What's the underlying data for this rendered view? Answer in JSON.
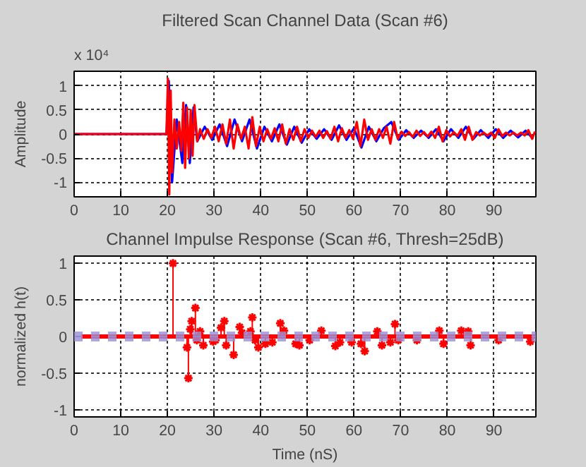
{
  "chart_data": [
    {
      "type": "line",
      "title": "Filtered Scan Channel Data (Scan #6)",
      "ylabel": "Amplitude",
      "annotations": [
        "x 10⁴"
      ],
      "xlim": [
        0,
        99
      ],
      "ylim": [
        -1.3,
        1.3
      ],
      "xticks": [
        0,
        10,
        20,
        30,
        40,
        50,
        60,
        70,
        80,
        90
      ],
      "yticks": [
        -1,
        -0.5,
        0,
        0.5,
        1
      ],
      "grid": true,
      "series": [
        {
          "color": "#0000ff",
          "x": [
            0,
            19.8,
            20.3,
            21.0,
            22.0,
            23.2,
            24.0,
            24.8,
            25.6,
            26.4,
            28.0,
            29.6,
            31.2,
            32.8,
            34.4,
            36.0,
            37.6,
            39.2,
            40.8,
            42.4,
            44.0,
            45.6,
            47.2,
            48.8,
            50.4,
            52.0,
            53.6,
            55.2,
            56.8,
            58.4,
            60.0,
            61.6,
            63.2,
            64.8,
            66.4,
            68.0,
            69.6,
            71.2,
            72.8,
            74.4,
            76.0,
            77.6,
            79.2,
            80.8,
            82.4,
            84.0,
            85.6,
            87.2,
            88.8,
            90.4,
            92.0,
            93.6,
            95.2,
            96.8,
            98.4
          ],
          "values": [
            0,
            0,
            1.1,
            -1.0,
            0.3,
            -0.6,
            0.6,
            -0.6,
            0.55,
            -0.15,
            0.15,
            -0.12,
            0.2,
            -0.25,
            0.3,
            -0.15,
            0.3,
            -0.3,
            0.15,
            -0.15,
            0.2,
            -0.22,
            0.15,
            -0.18,
            0.1,
            -0.1,
            0.1,
            -0.12,
            0.18,
            -0.12,
            0.12,
            -0.28,
            0.15,
            -0.15,
            0.12,
            0.25,
            -0.12,
            0.08,
            -0.08,
            0.07,
            -0.08,
            0.1,
            -0.15,
            0.1,
            -0.08,
            0.15,
            -0.1,
            0.08,
            -0.08,
            0.1,
            -0.08,
            0.07,
            -0.07,
            0.07,
            -0.1
          ]
        },
        {
          "color": "#ff0000",
          "x": [
            0,
            19.8,
            20.1,
            20.4,
            20.7,
            21.0,
            21.5,
            22.0,
            22.5,
            23.0,
            23.4,
            23.8,
            24.2,
            24.6,
            25.0,
            25.4,
            25.8,
            26.4,
            27.0,
            27.8,
            28.6,
            29.4,
            30.2,
            31.0,
            31.8,
            32.6,
            33.4,
            34.2,
            35.0,
            35.8,
            36.6,
            37.4,
            38.2,
            39.0,
            39.8,
            40.6,
            41.4,
            42.2,
            43.0,
            43.8,
            44.6,
            45.4,
            46.2,
            47.0,
            47.8,
            48.6,
            49.4,
            50.2,
            51.0,
            51.8,
            52.6,
            53.4,
            54.2,
            55.0,
            55.8,
            56.6,
            57.4,
            58.2,
            59.0,
            59.8,
            60.6,
            61.4,
            62.2,
            63.0,
            63.8,
            64.6,
            65.4,
            66.2,
            67.0,
            67.8,
            68.6,
            69.4,
            70.2,
            71.0,
            71.8,
            72.6,
            73.4,
            74.2,
            75.0,
            75.8,
            76.6,
            77.4,
            78.2,
            79.0,
            79.8,
            80.6,
            81.4,
            82.2,
            83.0,
            83.8,
            84.6,
            85.4,
            86.2,
            87.0,
            87.8,
            88.6,
            89.4,
            90.2,
            91.0,
            91.8,
            92.6,
            93.4,
            94.2,
            95.0,
            95.8,
            96.6,
            97.4,
            98.2,
            98.8
          ],
          "values": [
            0,
            0,
            1.15,
            -1.25,
            0.9,
            -0.8,
            0.3,
            -0.3,
            0.25,
            -0.35,
            0.65,
            -0.7,
            0.55,
            -0.5,
            0.5,
            -0.45,
            0.6,
            -0.15,
            0.1,
            -0.1,
            0.1,
            -0.08,
            0.15,
            -0.15,
            0.2,
            -0.2,
            0.3,
            -0.3,
            0.2,
            -0.1,
            0.15,
            -0.3,
            0.35,
            -0.25,
            0.15,
            -0.15,
            0.1,
            -0.1,
            0.12,
            -0.15,
            0.2,
            -0.2,
            0.1,
            -0.12,
            0.15,
            -0.15,
            0.1,
            -0.08,
            0.07,
            -0.06,
            0.07,
            -0.08,
            0.06,
            -0.1,
            0.15,
            -0.15,
            0.12,
            -0.08,
            0.08,
            -0.1,
            0.25,
            -0.25,
            0.3,
            -0.12,
            0.1,
            -0.12,
            0.1,
            -0.08,
            0.15,
            -0.2,
            0.25,
            -0.1,
            0.05,
            -0.04,
            0.04,
            -0.06,
            0.07,
            -0.04,
            0.04,
            -0.05,
            0.05,
            -0.08,
            0.15,
            -0.15,
            0.08,
            -0.05,
            0.04,
            -0.04,
            0.1,
            -0.12,
            0.15,
            -0.12,
            0.04,
            -0.03,
            0.03,
            -0.03,
            0.03,
            -0.08,
            0.1,
            -0.04,
            0.03,
            -0.03,
            0.03,
            -0.03,
            0.03,
            -0.03,
            0.08,
            -0.1,
            0.05
          ]
        }
      ]
    },
    {
      "type": "lollipop",
      "title": "Channel Impulse Response (Scan #6, Thresh=25dB)",
      "xlabel": "Time (nS)",
      "ylabel": "normalized h(t)",
      "xlim": [
        0,
        99
      ],
      "ylim": [
        -1.1,
        1.1
      ],
      "xticks": [
        0,
        10,
        20,
        30,
        40,
        50,
        60,
        70,
        80,
        90
      ],
      "yticks": [
        -1,
        -0.5,
        0,
        0.5,
        1
      ],
      "grid": true,
      "marker": "cross",
      "ref_lines": [
        {
          "axis": "y",
          "value": 0.03,
          "color": "#9b8fd6",
          "line_style": "dashed"
        },
        {
          "axis": "y",
          "value": -0.03,
          "color": "#9b8fd6",
          "line_style": "dashed"
        }
      ],
      "series": [
        {
          "type": "line",
          "marker": "none",
          "color": "#ff0000",
          "x": [
            1.5,
            99
          ],
          "values": [
            0,
            0
          ]
        },
        {
          "color": "#ff0000",
          "x": [
            21.2,
            24.2,
            24.5,
            24.9,
            25.2,
            26.0,
            26.3,
            27.0,
            27.7,
            29.8,
            30.3,
            31.5,
            32.2,
            32.6,
            34.2,
            35.5,
            36.0,
            37.8,
            38.2,
            38.8,
            39.5,
            41.0,
            42.5,
            44.2,
            45.0,
            47.5,
            48.3,
            50.5,
            53.0,
            56.0,
            57.0,
            59.5,
            61.5,
            62.3,
            65.0,
            66.0,
            67.8,
            68.8,
            69.5,
            73.5,
            78.3,
            79.2,
            83.0,
            84.5,
            85.0,
            91.0,
            97.8
          ],
          "values": [
            1.0,
            -0.15,
            -0.57,
            0.1,
            0.21,
            0.39,
            -0.05,
            0.07,
            -0.12,
            -0.07,
            -0.05,
            0.12,
            0.21,
            -0.12,
            -0.25,
            0.13,
            0.05,
            0.07,
            0.26,
            -0.05,
            -0.15,
            -0.1,
            -0.08,
            0.18,
            0.08,
            -0.1,
            -0.12,
            -0.05,
            0.08,
            -0.13,
            -0.08,
            -0.08,
            -0.1,
            -0.2,
            0.07,
            -0.12,
            -0.08,
            0.17,
            -0.05,
            -0.05,
            0.08,
            -0.1,
            0.08,
            0.07,
            -0.12,
            -0.05,
            -0.07
          ]
        }
      ]
    }
  ]
}
